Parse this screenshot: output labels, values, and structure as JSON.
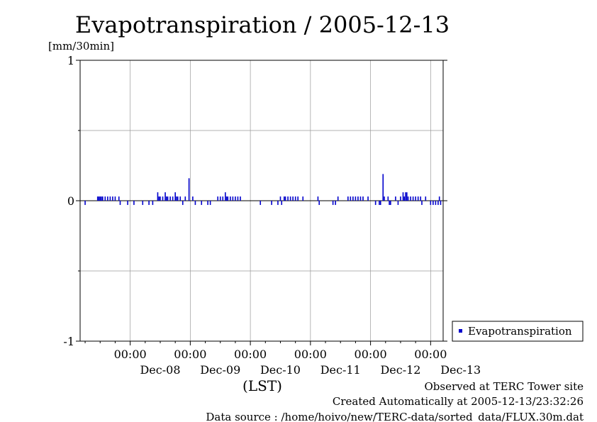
{
  "chart_data": {
    "type": "bar",
    "title": "Evapotranspiration / 2005-12-13",
    "ylabel": "[mm/30min]",
    "xlabel": "(LST)",
    "ylim": [
      -1,
      1
    ],
    "yticks": [
      {
        "value": 1,
        "label": "1"
      },
      {
        "value": 0,
        "label": "0"
      },
      {
        "value": -1,
        "label": "-1"
      }
    ],
    "grid": true,
    "xlim_hours": [
      -20,
      125
    ],
    "xticks": [
      {
        "hour": 0,
        "time": "00:00",
        "date": "Dec-08"
      },
      {
        "hour": 24,
        "time": "00:00",
        "date": "Dec-09"
      },
      {
        "hour": 48,
        "time": "00:00",
        "date": "Dec-10"
      },
      {
        "hour": 72,
        "time": "00:00",
        "date": "Dec-11"
      },
      {
        "hour": 96,
        "time": "00:00",
        "date": "Dec-12"
      },
      {
        "hour": 120,
        "time": "00:00",
        "date": "Dec-13"
      }
    ],
    "series": [
      {
        "name": "Evapotranspiration",
        "color": "#0000cc",
        "points": [
          [
            -18,
            -0.03
          ],
          [
            -13,
            0.03
          ],
          [
            -12.5,
            0.03
          ],
          [
            -12,
            0.03
          ],
          [
            -11.5,
            0.03
          ],
          [
            -11,
            0.03
          ],
          [
            -10,
            0.03
          ],
          [
            -9,
            0.03
          ],
          [
            -8,
            0.03
          ],
          [
            -7,
            0.03
          ],
          [
            -6,
            0.03
          ],
          [
            -4.5,
            0.03
          ],
          [
            -4,
            -0.03
          ],
          [
            -1,
            -0.03
          ],
          [
            1.5,
            -0.03
          ],
          [
            5,
            -0.03
          ],
          [
            7.5,
            -0.03
          ],
          [
            9,
            -0.03
          ],
          [
            11,
            0.06
          ],
          [
            11.5,
            0.03
          ],
          [
            12,
            0.03
          ],
          [
            13,
            0.03
          ],
          [
            14,
            0.06
          ],
          [
            14.5,
            0.03
          ],
          [
            15,
            0.03
          ],
          [
            16,
            0.03
          ],
          [
            17,
            0.03
          ],
          [
            18,
            0.06
          ],
          [
            18.5,
            0.03
          ],
          [
            19,
            0.03
          ],
          [
            20,
            0.03
          ],
          [
            21,
            -0.03
          ],
          [
            22,
            0.03
          ],
          [
            23.5,
            0.16
          ],
          [
            25,
            0.03
          ],
          [
            26,
            -0.03
          ],
          [
            28.5,
            -0.03
          ],
          [
            31,
            -0.03
          ],
          [
            32,
            -0.03
          ],
          [
            35,
            0.03
          ],
          [
            36,
            0.03
          ],
          [
            37,
            0.03
          ],
          [
            38,
            0.06
          ],
          [
            38.5,
            0.03
          ],
          [
            39,
            0.03
          ],
          [
            40,
            0.03
          ],
          [
            41,
            0.03
          ],
          [
            42,
            0.03
          ],
          [
            43,
            0.03
          ],
          [
            44,
            0.03
          ],
          [
            52,
            -0.03
          ],
          [
            56.5,
            -0.03
          ],
          [
            59,
            -0.03
          ],
          [
            60,
            0.03
          ],
          [
            60.5,
            -0.03
          ],
          [
            61.5,
            0.03
          ],
          [
            62,
            0.03
          ],
          [
            63,
            0.03
          ],
          [
            64,
            0.03
          ],
          [
            65,
            0.03
          ],
          [
            66,
            0.03
          ],
          [
            67,
            0.03
          ],
          [
            69,
            0.03
          ],
          [
            75,
            0.03
          ],
          [
            75.5,
            -0.03
          ],
          [
            81,
            -0.03
          ],
          [
            82,
            -0.03
          ],
          [
            83,
            0.03
          ],
          [
            87,
            0.03
          ],
          [
            88,
            0.03
          ],
          [
            89,
            0.03
          ],
          [
            90,
            0.03
          ],
          [
            91,
            0.03
          ],
          [
            92,
            0.03
          ],
          [
            93,
            0.03
          ],
          [
            95,
            0.03
          ],
          [
            98,
            -0.03
          ],
          [
            99.5,
            -0.03
          ],
          [
            100,
            -0.03
          ],
          [
            101,
            0.19
          ],
          [
            101.5,
            0.03
          ],
          [
            103,
            0.03
          ],
          [
            103.5,
            -0.03
          ],
          [
            104,
            -0.03
          ],
          [
            106,
            0.03
          ],
          [
            107,
            -0.03
          ],
          [
            108,
            0.03
          ],
          [
            109,
            0.06
          ],
          [
            109.5,
            0.03
          ],
          [
            110,
            0.06
          ],
          [
            110.5,
            0.06
          ],
          [
            111,
            0.03
          ],
          [
            112,
            0.03
          ],
          [
            113,
            0.03
          ],
          [
            114,
            0.03
          ],
          [
            115,
            0.03
          ],
          [
            116,
            0.03
          ],
          [
            116.5,
            -0.03
          ],
          [
            118,
            0.03
          ],
          [
            120,
            -0.03
          ],
          [
            121,
            -0.03
          ],
          [
            122,
            -0.03
          ],
          [
            123,
            -0.03
          ],
          [
            123.5,
            0.03
          ],
          [
            124,
            -0.03
          ]
        ]
      }
    ],
    "legend_position": "right",
    "legend_label": "Evapotranspiration"
  },
  "footer": {
    "line1": "Observed at TERC Tower site",
    "line2": "Created Automatically at 2005-12-13/23:32:26",
    "line3": "Data source : /home/hoivo/new/TERC-data/sorted_data/FLUX.30m.dat"
  }
}
